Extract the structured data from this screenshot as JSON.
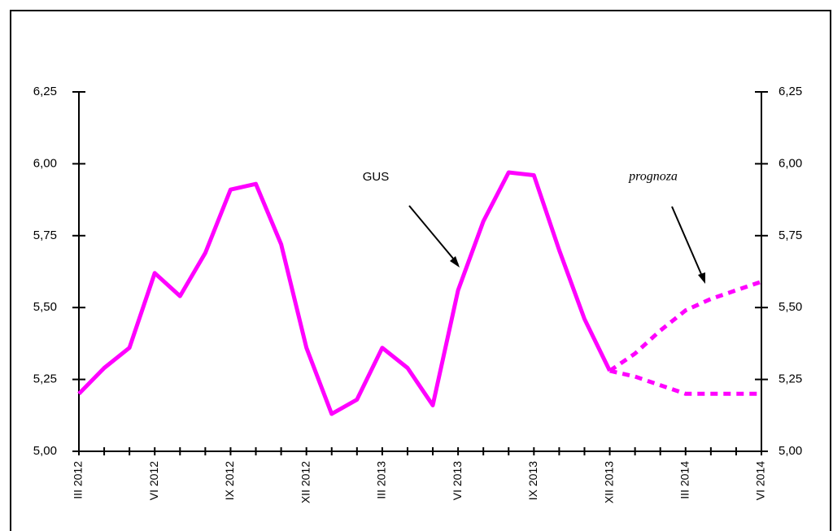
{
  "chart_data": {
    "type": "line",
    "categories": [
      "III 2012",
      null,
      null,
      "VI 2012",
      null,
      null,
      "IX 2012",
      null,
      null,
      "XII 2012",
      null,
      null,
      "III 2013",
      null,
      null,
      "VI 2013",
      null,
      null,
      "IX 2013",
      null,
      null,
      "XII 2013",
      null,
      null,
      "III 2014",
      null,
      null,
      "VI 2014"
    ],
    "series": [
      {
        "color": "#ff00ff",
        "dashed": false,
        "values": [
          5.2,
          5.29,
          5.36,
          5.62,
          5.54,
          5.69,
          5.91,
          5.93,
          5.72,
          5.36,
          5.13,
          5.18,
          5.36,
          5.29,
          5.16,
          5.56,
          5.8,
          5.97,
          5.96,
          5.7,
          5.46,
          5.28,
          null,
          null,
          null,
          null,
          null,
          null
        ]
      },
      {
        "color": "#ff00ff",
        "dashed": true,
        "values": [
          null,
          null,
          null,
          null,
          null,
          null,
          null,
          null,
          null,
          null,
          null,
          null,
          null,
          null,
          null,
          null,
          null,
          null,
          null,
          null,
          null,
          5.28,
          5.34,
          5.42,
          5.49,
          5.53,
          5.56,
          5.59
        ]
      },
      {
        "color": "#ff00ff",
        "dashed": true,
        "values": [
          null,
          null,
          null,
          null,
          null,
          null,
          null,
          null,
          null,
          null,
          null,
          null,
          null,
          null,
          null,
          null,
          null,
          null,
          null,
          null,
          null,
          5.28,
          5.26,
          5.23,
          5.2,
          5.2,
          5.2,
          5.2
        ]
      }
    ],
    "ylim": [
      5.0,
      6.25
    ],
    "yticks": [
      {
        "value": 5.0,
        "label": "5,00"
      },
      {
        "value": 5.25,
        "label": "5,25"
      },
      {
        "value": 5.5,
        "label": "5,50"
      },
      {
        "value": 5.75,
        "label": "5,75"
      },
      {
        "value": 6.0,
        "label": "6,00"
      },
      {
        "value": 6.25,
        "label": "6,25"
      }
    ],
    "y2lim": [
      5.0,
      6.25
    ],
    "y2ticks": [
      {
        "value": 5.0,
        "label": "5,00"
      },
      {
        "value": 5.25,
        "label": "5,25"
      },
      {
        "value": 5.5,
        "label": "5,50"
      },
      {
        "value": 5.75,
        "label": "5,75"
      },
      {
        "value": 6.0,
        "label": "6,00"
      },
      {
        "value": 6.25,
        "label": "6,25"
      }
    ],
    "annotations": [
      "GUS",
      "prognoza"
    ]
  }
}
